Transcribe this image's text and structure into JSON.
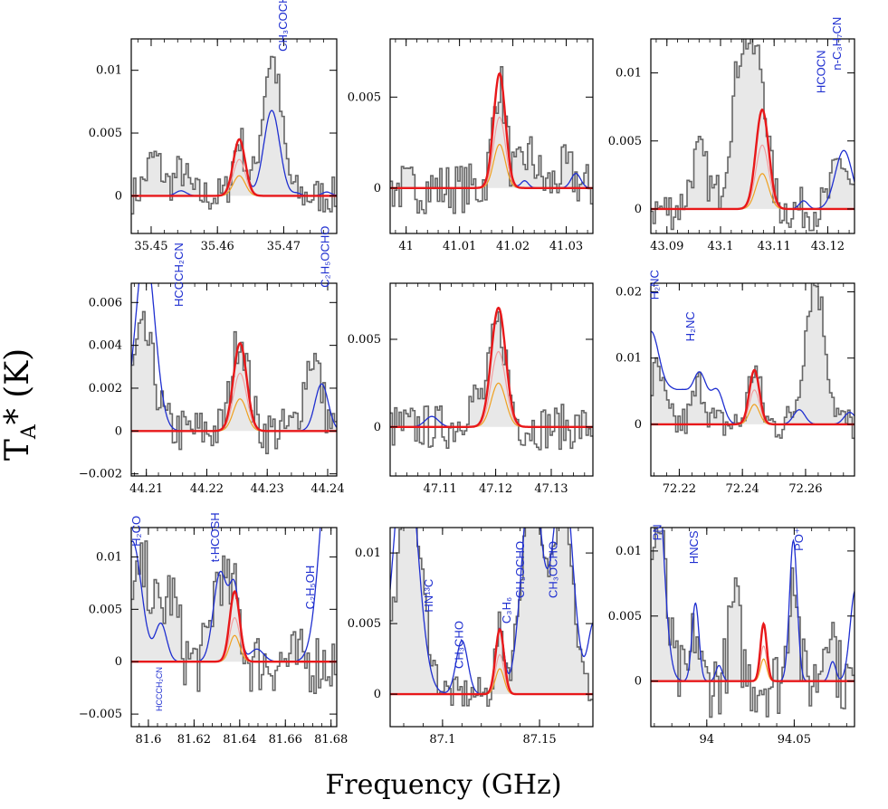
{
  "figure": {
    "ylabel_main": "T",
    "ylabel_sub": "A",
    "ylabel_rest": "* (K)",
    "xlabel": "Frequency (GHz)",
    "colors": {
      "data": "#666666",
      "fill": "#e8e8e8",
      "model_total": "#1f2fd0",
      "fit": "#e8181a",
      "comp_orange": "#f0a020",
      "comp_pink": "#f2a0a0"
    }
  },
  "chart_data": [
    {
      "type": "line",
      "panel": "1",
      "xlim": [
        35.447,
        35.478
      ],
      "ylim": [
        -0.003,
        0.0125
      ],
      "xticks": [
        35.45,
        35.46,
        35.47
      ],
      "xtick_labels": [
        "35.45",
        "35.46",
        "35.47"
      ],
      "yticks": [
        0,
        0.005,
        0.01
      ],
      "ytick_labels": [
        "0",
        "0.005",
        "0.01"
      ],
      "fit_peak": {
        "center": 35.4633,
        "amp": 0.0045,
        "width": 0.0009
      },
      "components": [
        {
          "amp": 0.0029
        },
        {
          "amp": 0.0016
        }
      ],
      "model_peaks": [
        [
          35.4545,
          0.0004,
          0.0008
        ],
        [
          35.4633,
          0.0045,
          0.0009
        ],
        [
          35.4682,
          0.0068,
          0.0012
        ],
        [
          35.472,
          0.0002,
          0.0006
        ],
        [
          35.4765,
          0.0003,
          0.0007
        ]
      ],
      "data_peaks": [
        [
          35.4505,
          0.003,
          0.0012
        ],
        [
          35.4545,
          0.002,
          0.001
        ],
        [
          35.4633,
          0.0045,
          0.0009
        ],
        [
          35.4682,
          0.011,
          0.0014
        ]
      ],
      "noise": 0.0015,
      "labels": [
        {
          "text": "CH3COCH3",
          "sub": "3",
          "x": 35.4705,
          "y": 0.0115,
          "display": "CH₃COCH₃"
        }
      ]
    },
    {
      "type": "line",
      "panel": "2",
      "xlim": [
        40.997,
        41.035
      ],
      "ylim": [
        -0.0025,
        0.0082
      ],
      "xticks": [
        41.0,
        41.01,
        41.02,
        41.03
      ],
      "xtick_labels": [
        "41",
        "41.01",
        "41.02",
        "41.03"
      ],
      "yticks": [
        0,
        0.005
      ],
      "ytick_labels": [
        "0",
        "0.005"
      ],
      "fit_peak": {
        "center": 41.0175,
        "amp": 0.0063,
        "width": 0.0011
      },
      "components": [
        {
          "amp": 0.0039
        },
        {
          "amp": 0.0024
        }
      ],
      "model_peaks": [
        [
          41.0175,
          0.0063,
          0.0011
        ],
        [
          41.0222,
          0.0004,
          0.0007
        ],
        [
          41.0318,
          0.0008,
          0.0009
        ]
      ],
      "data_peaks": [
        [
          41.0175,
          0.0058,
          0.0012
        ],
        [
          41.023,
          0.0018,
          0.0015
        ],
        [
          41.03,
          0.001,
          0.0015
        ]
      ],
      "noise": 0.0014,
      "labels": []
    },
    {
      "type": "line",
      "panel": "3",
      "xlim": [
        43.087,
        43.125
      ],
      "ylim": [
        -0.0018,
        0.0125
      ],
      "xticks": [
        43.09,
        43.1,
        43.11,
        43.12
      ],
      "xtick_labels": [
        "43.09",
        "43.1",
        "43.11",
        "43.12"
      ],
      "yticks": [
        0,
        0.005,
        0.01
      ],
      "ytick_labels": [
        "0",
        "0.005",
        "0.01"
      ],
      "fit_peak": {
        "center": 43.1078,
        "amp": 0.0073,
        "width": 0.0012
      },
      "components": [
        {
          "amp": 0.0047
        },
        {
          "amp": 0.0026
        }
      ],
      "model_peaks": [
        [
          43.1078,
          0.0073,
          0.0012
        ],
        [
          43.1155,
          0.0006,
          0.0008
        ],
        [
          43.123,
          0.0043,
          0.0016
        ]
      ],
      "data_peaks": [
        [
          43.1045,
          0.0125,
          0.0022
        ],
        [
          43.096,
          0.004,
          0.0015
        ],
        [
          43.1078,
          0.0058,
          0.0012
        ],
        [
          43.1225,
          0.0035,
          0.0015
        ]
      ],
      "noise": 0.0016,
      "labels": [
        {
          "text": "HCOCN",
          "x": 43.1195,
          "y": 0.0085,
          "display": "HCOCN"
        },
        {
          "text": "n-C3H7CN",
          "x": 43.1225,
          "y": 0.0102,
          "display": "n-C₃H₇CN"
        }
      ]
    },
    {
      "type": "line",
      "panel": "4",
      "xlim": [
        44.2075,
        44.2415
      ],
      "ylim": [
        -0.0021,
        0.0069
      ],
      "xticks": [
        44.21,
        44.22,
        44.23,
        44.24
      ],
      "xtick_labels": [
        "44.21",
        "44.22",
        "44.23",
        "44.24"
      ],
      "yticks": [
        -0.002,
        0,
        0.002,
        0.004,
        0.006
      ],
      "ytick_labels": [
        "−0.002",
        "0",
        "0.002",
        "0.004",
        "0.006"
      ],
      "fit_peak": {
        "center": 44.2255,
        "amp": 0.0041,
        "width": 0.0011
      },
      "components": [
        {
          "amp": 0.0027
        },
        {
          "amp": 0.0015
        }
      ],
      "model_peaks": [
        [
          44.2098,
          0.0085,
          0.0016
        ],
        [
          44.2255,
          0.0041,
          0.0011
        ],
        [
          44.239,
          0.0022,
          0.0011
        ]
      ],
      "data_peaks": [
        [
          44.2095,
          0.0045,
          0.0018
        ],
        [
          44.2255,
          0.0045,
          0.0013
        ],
        [
          44.2375,
          0.0035,
          0.0014
        ]
      ],
      "noise": 0.0011,
      "labels": [
        {
          "text": "HCCCH2CN",
          "x": 44.216,
          "y": 0.0058,
          "display": "HCCCH₂CN"
        },
        {
          "text": "C2H5OCHO",
          "x": 44.2402,
          "y": 0.0067,
          "display": "C₂H₅OCHO"
        }
      ]
    },
    {
      "type": "line",
      "panel": "5",
      "xlim": [
        47.101,
        47.1375
      ],
      "ylim": [
        -0.0028,
        0.0082
      ],
      "xticks": [
        47.11,
        47.12,
        47.13
      ],
      "xtick_labels": [
        "47.11",
        "47.12",
        "47.13"
      ],
      "yticks": [
        0,
        0.005
      ],
      "ytick_labels": [
        "0",
        "0.005"
      ],
      "fit_peak": {
        "center": 47.1205,
        "amp": 0.0068,
        "width": 0.0013
      },
      "components": [
        {
          "amp": 0.0043
        },
        {
          "amp": 0.0025
        }
      ],
      "model_peaks": [
        [
          47.1085,
          0.0006,
          0.0012
        ],
        [
          47.1205,
          0.0068,
          0.0013
        ]
      ],
      "data_peaks": [
        [
          47.1205,
          0.0058,
          0.0015
        ],
        [
          47.116,
          0.0015,
          0.0015
        ]
      ],
      "noise": 0.0013,
      "labels": []
    },
    {
      "type": "line",
      "panel": "6",
      "xlim": [
        72.211,
        72.2755
      ],
      "ylim": [
        -0.0078,
        0.0213
      ],
      "xticks": [
        72.22,
        72.24,
        72.26
      ],
      "xtick_labels": [
        "72.22",
        "72.24",
        "72.26"
      ],
      "yticks": [
        0,
        0.01,
        0.02
      ],
      "ytick_labels": [
        "0",
        "0.01",
        "0.02"
      ],
      "fit_peak": {
        "center": 72.2438,
        "amp": 0.0082,
        "width": 0.0016
      },
      "components": [
        {
          "amp": 0.0052
        },
        {
          "amp": 0.003
        }
      ],
      "model_peaks": [
        [
          72.211,
          0.014,
          0.003
        ],
        [
          72.2175,
          0.0035,
          0.0022
        ],
        [
          72.2215,
          0.004,
          0.0022
        ],
        [
          72.2265,
          0.0075,
          0.0022
        ],
        [
          72.232,
          0.005,
          0.002
        ],
        [
          72.2438,
          0.0082,
          0.0016
        ],
        [
          72.258,
          0.0022,
          0.0018
        ],
        [
          72.274,
          0.0018,
          0.0018
        ]
      ],
      "data_peaks": [
        [
          72.213,
          0.008,
          0.002
        ],
        [
          72.2265,
          0.006,
          0.002
        ],
        [
          72.2438,
          0.0085,
          0.0018
        ],
        [
          72.263,
          0.0215,
          0.0032
        ]
      ],
      "noise": 0.0028,
      "labels": [
        {
          "text": "H2NC",
          "x": 72.2135,
          "y": 0.0188,
          "display": "H₂NC"
        },
        {
          "text": "H2NC",
          "x": 72.2248,
          "y": 0.0125,
          "display": "H₂NC"
        }
      ]
    },
    {
      "type": "line",
      "panel": "7",
      "xlim": [
        81.5925,
        81.6825
      ],
      "ylim": [
        -0.0062,
        0.0128
      ],
      "xticks": [
        81.6,
        81.62,
        81.64,
        81.66,
        81.68
      ],
      "xtick_labels": [
        "81.6",
        "81.62",
        "81.64",
        "81.66",
        "81.68"
      ],
      "yticks": [
        -0.005,
        0,
        0.005,
        0.01
      ],
      "ytick_labels": [
        "−0.005",
        "0",
        "0.005",
        "0.01"
      ],
      "fit_peak": {
        "center": 81.6378,
        "amp": 0.0067,
        "width": 0.0022
      },
      "components": [
        {
          "amp": 0.0042
        },
        {
          "amp": 0.0025
        }
      ],
      "model_peaks": [
        [
          81.593,
          0.0115,
          0.004
        ],
        [
          81.6055,
          0.0036,
          0.0025
        ],
        [
          81.6315,
          0.0085,
          0.003
        ],
        [
          81.6378,
          0.0067,
          0.0022
        ],
        [
          81.6475,
          0.0012,
          0.003
        ],
        [
          81.68,
          0.022,
          0.0045
        ]
      ],
      "data_peaks": [
        [
          81.598,
          0.0085,
          0.005
        ],
        [
          81.61,
          0.006,
          0.003
        ],
        [
          81.631,
          0.0085,
          0.003
        ],
        [
          81.6378,
          0.006,
          0.0025
        ]
      ],
      "noise": 0.0032,
      "labels": [
        {
          "text": "H2CO",
          "x": 81.5965,
          "y": 0.011,
          "display": "H₂CO"
        },
        {
          "text": "t-HCOSH",
          "x": 81.631,
          "y": 0.0095,
          "display": "t-HCOSH"
        },
        {
          "text": "C2H5OH",
          "x": 81.6725,
          "y": 0.005,
          "display": "C₂H₅OH"
        },
        {
          "text": "HCCCH2CN",
          "x": 81.606,
          "y": -0.0005,
          "display": "HCCCH₂CN"
        }
      ]
    },
    {
      "type": "line",
      "panel": "8",
      "xlim": [
        87.073,
        87.1775
      ],
      "ylim": [
        -0.0023,
        0.0118
      ],
      "xticks": [
        87.1,
        87.15
      ],
      "xtick_labels": [
        "87.1",
        "87.15"
      ],
      "yticks": [
        0,
        0.005,
        0.01
      ],
      "ytick_labels": [
        "0",
        "0.005",
        "0.01"
      ],
      "fit_peak": {
        "center": 87.1295,
        "amp": 0.0046,
        "width": 0.0022
      },
      "components": [
        {
          "amp": 0.0028
        },
        {
          "amp": 0.0018
        }
      ],
      "model_peaks": [
        [
          87.081,
          0.018,
          0.006
        ],
        [
          87.11,
          0.0038,
          0.003
        ],
        [
          87.1295,
          0.0046,
          0.0022
        ],
        [
          87.146,
          0.016,
          0.005
        ],
        [
          87.162,
          0.016,
          0.005
        ],
        [
          87.178,
          0.005,
          0.003
        ]
      ],
      "data_peaks": [
        [
          87.083,
          0.014,
          0.0065
        ],
        [
          87.146,
          0.014,
          0.0055
        ],
        [
          87.162,
          0.014,
          0.005
        ],
        [
          87.1295,
          0.0045,
          0.0022
        ]
      ],
      "noise": 0.0012,
      "labels": [
        {
          "text": "HN13C",
          "x": 87.095,
          "y": 0.0058,
          "display": "HN¹³C"
        },
        {
          "text": "CH3CHO",
          "x": 87.1105,
          "y": 0.0018,
          "display": "CH₃CHO"
        },
        {
          "text": "C3H6",
          "x": 87.135,
          "y": 0.005,
          "display": "C₃H₆"
        },
        {
          "text": "CH3OCHO",
          "x": 87.142,
          "y": 0.0068,
          "display": "CH₃OCHO"
        },
        {
          "text": "CH3OCHO",
          "x": 87.159,
          "y": 0.0068,
          "display": "CH₃OCHO"
        }
      ]
    },
    {
      "type": "line",
      "panel": "9",
      "xlim": [
        93.968,
        94.0845
      ],
      "ylim": [
        -0.0035,
        0.0118
      ],
      "xticks": [
        94.0,
        94.05
      ],
      "xtick_labels": [
        "94",
        "94.05"
      ],
      "yticks": [
        0,
        0.005,
        0.01
      ],
      "ytick_labels": [
        "0",
        "0.005",
        "0.01"
      ],
      "fit_peak": {
        "center": 94.0325,
        "amp": 0.0044,
        "width": 0.0018
      },
      "components": [
        {
          "amp": 0.0027
        },
        {
          "amp": 0.0017
        }
      ],
      "model_peaks": [
        [
          93.97,
          0.02,
          0.0045
        ],
        [
          93.9935,
          0.006,
          0.002
        ],
        [
          94.007,
          0.0012,
          0.0018
        ],
        [
          94.0325,
          0.0044,
          0.0018
        ],
        [
          94.0495,
          0.0108,
          0.0022
        ],
        [
          94.072,
          0.0015,
          0.0018
        ],
        [
          94.085,
          0.007,
          0.003
        ]
      ],
      "data_peaks": [
        [
          93.972,
          0.012,
          0.0045
        ],
        [
          93.9935,
          0.004,
          0.002
        ],
        [
          94.016,
          0.006,
          0.003
        ],
        [
          94.0495,
          0.0095,
          0.0025
        ],
        [
          94.07,
          0.005,
          0.003
        ]
      ],
      "noise": 0.0028,
      "labels": [
        {
          "text": "PN",
          "x": 93.974,
          "y": 0.0108,
          "display": "PN"
        },
        {
          "text": "HNCS",
          "x": 93.995,
          "y": 0.009,
          "display": "HNCS"
        },
        {
          "text": "PO+",
          "x": 94.055,
          "y": 0.01,
          "display": "PO⁺"
        }
      ]
    }
  ]
}
